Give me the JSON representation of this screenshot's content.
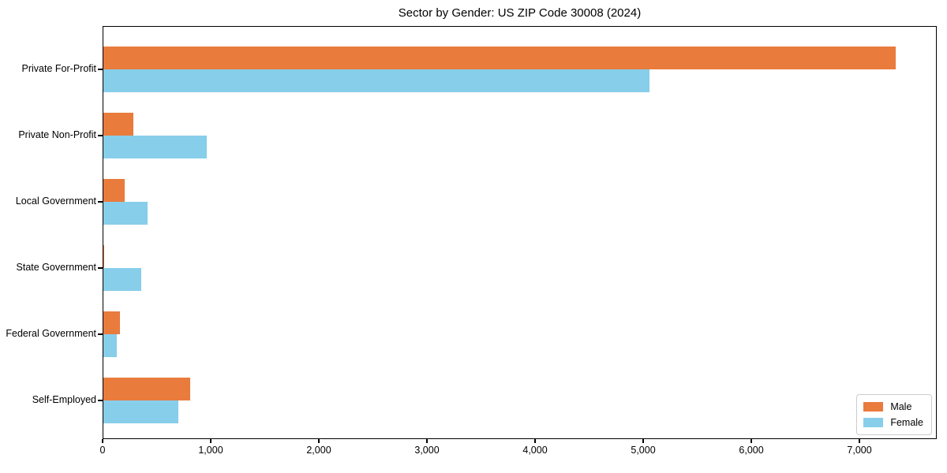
{
  "chart_data": {
    "type": "bar",
    "orientation": "horizontal",
    "title": "Sector by Gender: US ZIP Code 30008 (2024)",
    "xlabel": "",
    "ylabel": "",
    "categories": [
      "Private For-Profit",
      "Private Non-Profit",
      "Local Government",
      "State Government",
      "Federal Government",
      "Self-Employed"
    ],
    "series": [
      {
        "name": "Male",
        "color": "#E97B3D",
        "values": [
          7335,
          285,
          205,
          10,
          160,
          810
        ]
      },
      {
        "name": "Female",
        "color": "#87CEEB",
        "values": [
          5060,
          960,
          415,
          355,
          130,
          700
        ]
      }
    ],
    "xlim": [
      0,
      7715
    ],
    "xticks": [
      0,
      1000,
      2000,
      3000,
      4000,
      5000,
      6000,
      7000
    ],
    "xtick_labels": [
      "0",
      "1,000",
      "2,000",
      "3,000",
      "4,000",
      "5,000",
      "6,000",
      "7,000"
    ],
    "legend_position": "lower right",
    "grid": false,
    "frame": true
  }
}
